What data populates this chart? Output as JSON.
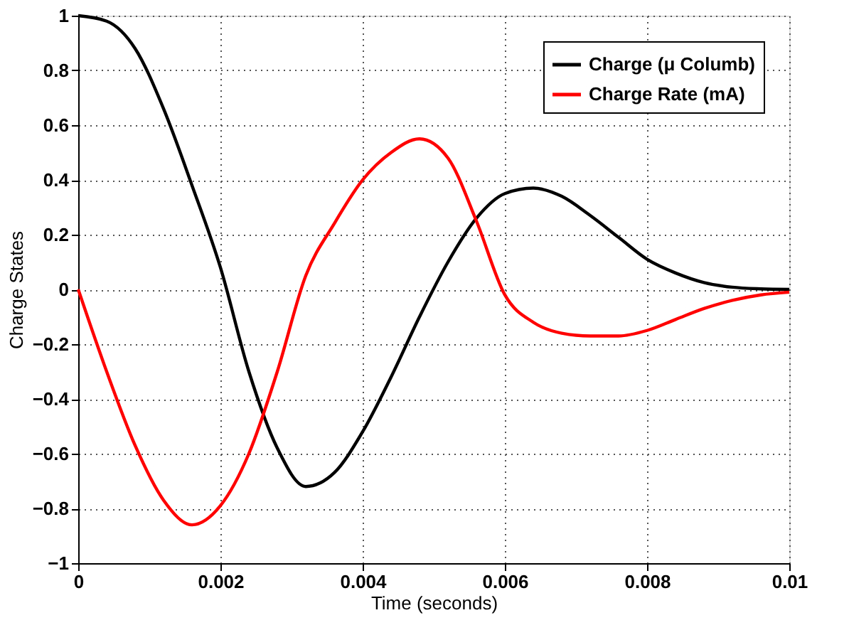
{
  "chart_data": {
    "type": "line",
    "xlabel": "Time (seconds)",
    "ylabel": "Charge States",
    "x": [
      0,
      0.0004,
      0.0008,
      0.0012,
      0.0016,
      0.002,
      0.0024,
      0.0028,
      0.0032,
      0.0036,
      0.004,
      0.0044,
      0.0048,
      0.0052,
      0.0056,
      0.006,
      0.0064,
      0.0068,
      0.0072,
      0.0076,
      0.008,
      0.0084,
      0.0088,
      0.0092,
      0.0096,
      0.01
    ],
    "series": [
      {
        "name": "Charge (μ Columb)",
        "color": "#000000",
        "values": [
          1,
          0.98,
          0.88,
          0.66,
          0.38,
          0.08,
          -0.3,
          -0.58,
          -0.72,
          -0.67,
          -0.52,
          -0.32,
          -0.1,
          0.1,
          0.26,
          0.35,
          0.37,
          0.34,
          0.27,
          0.19,
          0.11,
          0.06,
          0.025,
          0.008,
          0.002,
          0
        ]
      },
      {
        "name": "Charge Rate (mA)",
        "color": "#ff0000",
        "values": [
          0,
          -0.3,
          -0.57,
          -0.77,
          -0.86,
          -0.79,
          -0.6,
          -0.3,
          0.05,
          0.24,
          0.4,
          0.5,
          0.55,
          0.48,
          0.25,
          -0.02,
          -0.12,
          -0.16,
          -0.17,
          -0.17,
          -0.15,
          -0.11,
          -0.07,
          -0.04,
          -0.02,
          -0.01
        ]
      }
    ],
    "xlim": [
      0,
      0.01
    ],
    "xticks": [
      0,
      0.002,
      0.004,
      0.006,
      0.008,
      0.01
    ],
    "ylim": [
      -1,
      1
    ],
    "yticks": [
      -1,
      -0.8,
      -0.6,
      -0.4,
      -0.2,
      0,
      0.2,
      0.4,
      0.6,
      0.8,
      1
    ],
    "grid": true,
    "legend": "top right",
    "line_style": "solid",
    "marker": "none"
  }
}
